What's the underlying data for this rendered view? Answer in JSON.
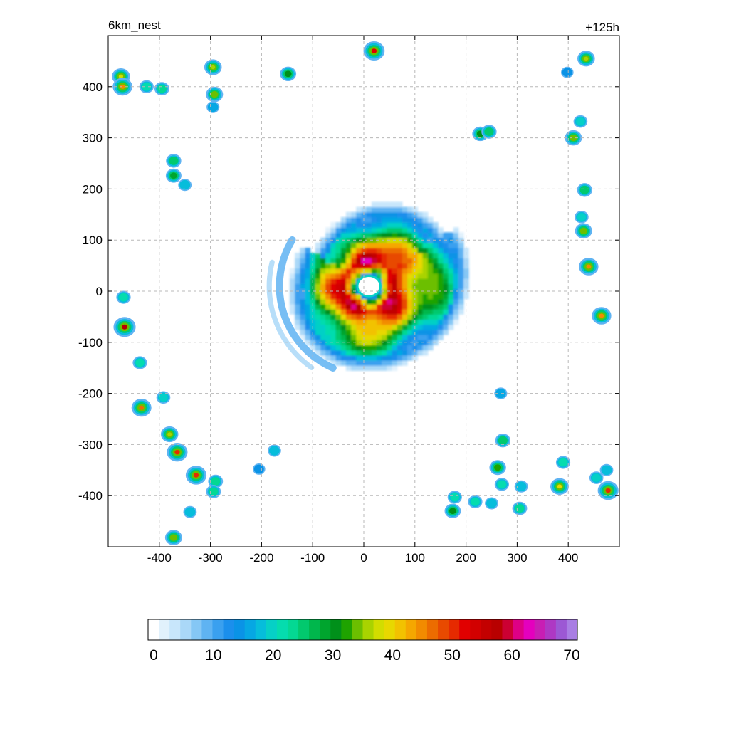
{
  "chart_data": {
    "type": "heatmap",
    "title_left": "6km_nest",
    "title_right": "+125h",
    "xlabel": "",
    "ylabel": "",
    "xlim": [
      -500,
      500
    ],
    "ylim": [
      -500,
      500
    ],
    "x_ticks": [
      -400,
      -300,
      -200,
      -100,
      0,
      100,
      200,
      300,
      400
    ],
    "y_ticks": [
      400,
      300,
      200,
      100,
      0,
      -100,
      -200,
      -300,
      -400
    ],
    "x_tick_labels": [
      "-400",
      "-300",
      "-200",
      "-100",
      "0",
      "100",
      "200",
      "300",
      "400"
    ],
    "y_tick_labels": [
      "400",
      "300",
      "200",
      "100",
      "0",
      "-100",
      "-200",
      "-300",
      "-400"
    ],
    "grid": true,
    "storm_center": [
      10,
      10
    ],
    "eye_radius": 25,
    "colorbar": {
      "min": 0,
      "max": 70,
      "tick_values": [
        0,
        10,
        20,
        30,
        40,
        50,
        60,
        70
      ],
      "tick_labels": [
        "0",
        "10",
        "20",
        "30",
        "40",
        "50",
        "60",
        "70"
      ],
      "colors": [
        "#ffffff",
        "#e1f1fc",
        "#c8e6fb",
        "#aad8f8",
        "#85c7f5",
        "#5fb3f2",
        "#3aa0ef",
        "#1b8fec",
        "#0a93e6",
        "#06a7e3",
        "#06bddb",
        "#06d0c6",
        "#05dcae",
        "#04d893",
        "#02c96e",
        "#00b74c",
        "#00a52e",
        "#00901a",
        "#1fa300",
        "#6cbf00",
        "#a9d300",
        "#d2dd00",
        "#e8d800",
        "#f2c200",
        "#f5a700",
        "#f28b00",
        "#ec6c00",
        "#e84a00",
        "#e62a00",
        "#e10000",
        "#d20000",
        "#c30000",
        "#b80000",
        "#cc0033",
        "#de0086",
        "#e400be",
        "#c81eb4",
        "#ae38c4",
        "#9c58d4",
        "#a97ee3"
      ]
    },
    "cells": [
      {
        "x": -475,
        "y": 420,
        "v": 38
      },
      {
        "x": -472,
        "y": 400,
        "v": 45
      },
      {
        "x": -425,
        "y": 400,
        "v": 22
      },
      {
        "x": -395,
        "y": 396,
        "v": 24
      },
      {
        "x": -295,
        "y": 438,
        "v": 36
      },
      {
        "x": -292,
        "y": 385,
        "v": 34
      },
      {
        "x": -295,
        "y": 360,
        "v": 16
      },
      {
        "x": -148,
        "y": 425,
        "v": 30
      },
      {
        "x": 20,
        "y": 470,
        "v": 52
      },
      {
        "x": 435,
        "y": 455,
        "v": 36
      },
      {
        "x": 398,
        "y": 428,
        "v": 14
      },
      {
        "x": 228,
        "y": 308,
        "v": 30
      },
      {
        "x": 245,
        "y": 312,
        "v": 26
      },
      {
        "x": 410,
        "y": 300,
        "v": 34
      },
      {
        "x": 424,
        "y": 332,
        "v": 20
      },
      {
        "x": -372,
        "y": 255,
        "v": 26
      },
      {
        "x": -372,
        "y": 226,
        "v": 28
      },
      {
        "x": -350,
        "y": 208,
        "v": 18
      },
      {
        "x": 432,
        "y": 198,
        "v": 26
      },
      {
        "x": 426,
        "y": 145,
        "v": 20
      },
      {
        "x": 430,
        "y": 118,
        "v": 34
      },
      {
        "x": 440,
        "y": 48,
        "v": 44
      },
      {
        "x": 465,
        "y": -48,
        "v": 44
      },
      {
        "x": -470,
        "y": -12,
        "v": 22
      },
      {
        "x": -468,
        "y": -70,
        "v": 56
      },
      {
        "x": -438,
        "y": -140,
        "v": 22
      },
      {
        "x": -435,
        "y": -228,
        "v": 46
      },
      {
        "x": -392,
        "y": -208,
        "v": 20
      },
      {
        "x": -380,
        "y": -280,
        "v": 36
      },
      {
        "x": -365,
        "y": -315,
        "v": 50
      },
      {
        "x": -328,
        "y": -360,
        "v": 50
      },
      {
        "x": -290,
        "y": -372,
        "v": 24
      },
      {
        "x": -294,
        "y": -392,
        "v": 24
      },
      {
        "x": -340,
        "y": -432,
        "v": 18
      },
      {
        "x": -372,
        "y": -482,
        "v": 34
      },
      {
        "x": -175,
        "y": -312,
        "v": 18
      },
      {
        "x": -205,
        "y": -348,
        "v": 14
      },
      {
        "x": 268,
        "y": -200,
        "v": 16
      },
      {
        "x": 272,
        "y": -292,
        "v": 26
      },
      {
        "x": 262,
        "y": -345,
        "v": 32
      },
      {
        "x": 270,
        "y": -378,
        "v": 22
      },
      {
        "x": 308,
        "y": -382,
        "v": 18
      },
      {
        "x": 305,
        "y": -425,
        "v": 24
      },
      {
        "x": 178,
        "y": -403,
        "v": 22
      },
      {
        "x": 174,
        "y": -430,
        "v": 30
      },
      {
        "x": 218,
        "y": -412,
        "v": 22
      },
      {
        "x": 250,
        "y": -415,
        "v": 18
      },
      {
        "x": 383,
        "y": -382,
        "v": 40
      },
      {
        "x": 390,
        "y": -335,
        "v": 22
      },
      {
        "x": 455,
        "y": -365,
        "v": 20
      },
      {
        "x": 478,
        "y": -390,
        "v": 50
      },
      {
        "x": 475,
        "y": -350,
        "v": 18
      }
    ]
  }
}
